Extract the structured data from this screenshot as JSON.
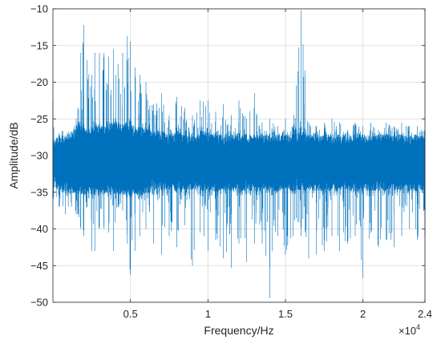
{
  "chart_data": {
    "type": "line",
    "title": "",
    "xlabel": "Frequency/Hz",
    "ylabel": "Amplitude/dB",
    "x_exponent_label": "×10",
    "x_exponent_power": "4",
    "xlim": [
      0,
      24000
    ],
    "ylim": [
      -50,
      -10
    ],
    "xticks": [
      5000,
      10000,
      15000,
      20000,
      24000
    ],
    "xtick_labels": [
      "0.5",
      "1",
      "1.5",
      "2",
      "2.4"
    ],
    "yticks": [
      -50,
      -45,
      -40,
      -35,
      -30,
      -25,
      -20,
      -15,
      -10
    ],
    "ytick_labels": [
      "−50",
      "−45",
      "−40",
      "−35",
      "−30",
      "−25",
      "−20",
      "−15",
      "−10"
    ],
    "grid": true,
    "line_color": "#0072BD",
    "series": [
      {
        "x": [
          0,
          400,
          800,
          1200,
          1500,
          1600,
          1800,
          2000,
          2200,
          2500,
          2700,
          3000,
          3300,
          3600,
          3900,
          4200,
          4500,
          4800,
          5000,
          5300,
          5600,
          6000,
          6500,
          7000,
          7500,
          8000,
          8500,
          9000,
          9500,
          10000,
          10500,
          11000,
          11500,
          12000,
          12500,
          13000,
          13500,
          14000,
          14500,
          15000,
          15500,
          16000,
          16500,
          17000,
          17500,
          18000,
          18500,
          19000,
          19500,
          20000,
          20500,
          21000,
          21500,
          22000,
          22500,
          23000,
          23500,
          24000
        ],
        "upper": [
          -22.5,
          -27,
          -27.5,
          -27,
          -25,
          -23.5,
          -16,
          -12.2,
          -17,
          -19,
          -16,
          -16,
          -16,
          -16.5,
          -15.5,
          -17.5,
          -16,
          -13.7,
          -14.5,
          -18,
          -19,
          -20,
          -23,
          -21.5,
          -24.5,
          -22,
          -23.5,
          -24.5,
          -22.5,
          -22.5,
          -24,
          -23,
          -24.5,
          -22.5,
          -25,
          -21.5,
          -25.5,
          -25,
          -26,
          -25,
          -26,
          -10.2,
          -25.5,
          -26,
          -25.5,
          -25,
          -25.5,
          -26.5,
          -25.5,
          -26,
          -25.5,
          -26.5,
          -25.5,
          -26,
          -25.5,
          -26,
          -26,
          -26.5
        ],
        "lower": [
          -36,
          -37,
          -38,
          -37,
          -38,
          -38,
          -40,
          -41,
          -37,
          -43,
          -43,
          -40,
          -40,
          -40.5,
          -43,
          -37,
          -37.5,
          -42,
          -46.3,
          -43,
          -41,
          -40,
          -42,
          -43.5,
          -41,
          -42.5,
          -39.5,
          -45,
          -40.5,
          -43,
          -41.5,
          -44,
          -45.3,
          -42,
          -44.5,
          -42,
          -42,
          -49.4,
          -41,
          -43.5,
          -41,
          -41,
          -44,
          -43.5,
          -43,
          -41,
          -43,
          -42,
          -41,
          -46.7,
          -40.5,
          -42.5,
          -41.5,
          -42.5,
          -41,
          -40,
          -41.5,
          -41
        ],
        "band_upper": [
          -29,
          -28,
          -28,
          -27.5,
          -27,
          -26.5,
          -26,
          -27,
          -27.5,
          -27,
          -26.5,
          -26.5,
          -27,
          -26.5,
          -26,
          -26.5,
          -26.5,
          -26.5,
          -26.5,
          -27,
          -27,
          -27,
          -27.5,
          -27.5,
          -28,
          -27.5,
          -28,
          -28,
          -27.5,
          -27.5,
          -28,
          -28,
          -28,
          -28,
          -28,
          -28,
          -28,
          -28,
          -28,
          -28,
          -28,
          -27.5,
          -28,
          -28,
          -28,
          -28,
          -28,
          -28,
          -28,
          -28,
          -28,
          -28,
          -28,
          -28,
          -28,
          -28,
          -28,
          -28
        ],
        "band_lower": [
          -33,
          -34,
          -34,
          -34.5,
          -34.5,
          -34.5,
          -34.5,
          -34.5,
          -34.5,
          -34.5,
          -34.5,
          -34.5,
          -34.5,
          -34.5,
          -34.5,
          -34.5,
          -34.5,
          -34.5,
          -34.5,
          -34.5,
          -34.5,
          -34.5,
          -34,
          -34,
          -34,
          -34,
          -34,
          -34,
          -34,
          -34,
          -34,
          -34,
          -34,
          -34,
          -34,
          -34,
          -34,
          -34,
          -34,
          -34,
          -34,
          -34,
          -34,
          -34,
          -34,
          -34,
          -34,
          -34,
          -34,
          -34,
          -34,
          -34,
          -34,
          -34,
          -34,
          -34,
          -34,
          -34
        ]
      }
    ]
  }
}
